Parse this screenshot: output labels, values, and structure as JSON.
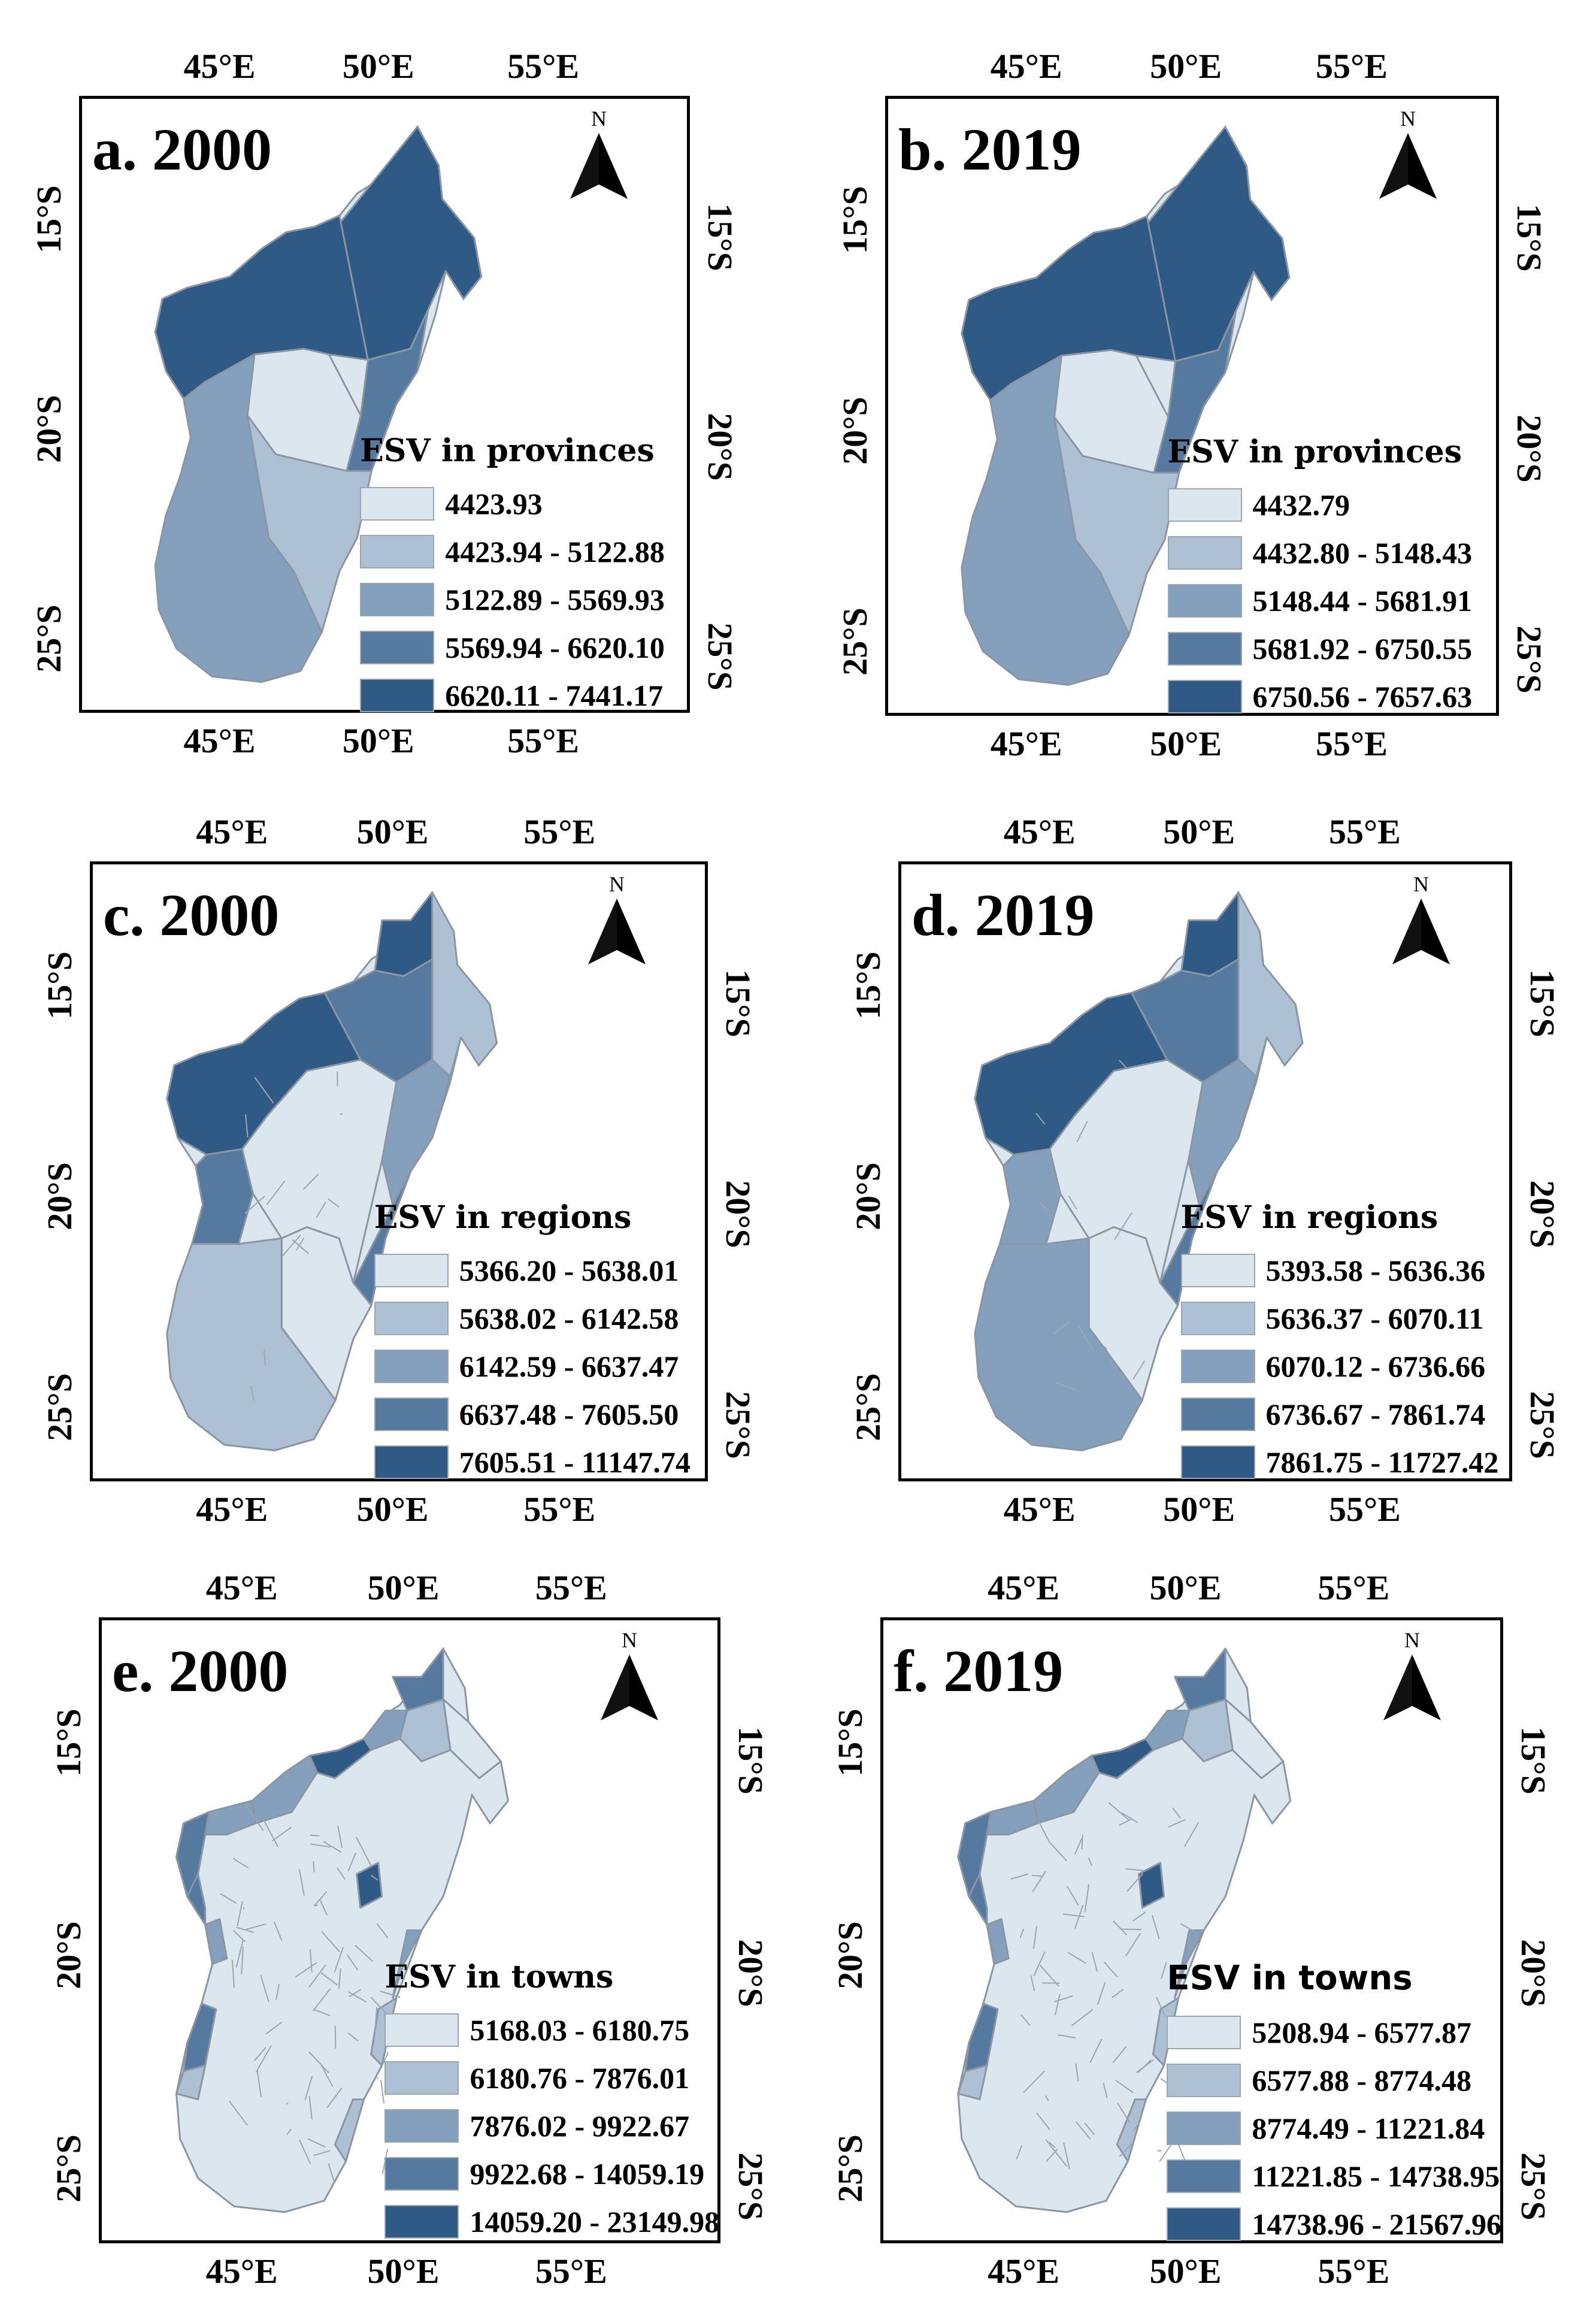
{
  "colors": [
    "#dce6ee",
    "#aec1d4",
    "#84a0bd",
    "#56799f",
    "#2e5a85"
  ],
  "axis_ticks": {
    "lon": [
      "45°E",
      "50°E",
      "55°E"
    ],
    "lat": [
      "15°S",
      "20°S",
      "25°S"
    ]
  },
  "panels": [
    {
      "title": "a. 2000",
      "north_label": "N",
      "legend_title": "ESV in provinces",
      "classes": [
        "4423.93",
        "4423.94 - 5122.88",
        "5122.89 - 5569.93",
        "5569.94 - 6620.10",
        "6620.11 - 7441.17"
      ]
    },
    {
      "title": "b. 2019",
      "north_label": "N",
      "legend_title": "ESV in provinces",
      "classes": [
        "4432.79",
        "4432.80 - 5148.43",
        "5148.44 - 5681.91",
        "5681.92 - 6750.55",
        "6750.56 - 7657.63"
      ]
    },
    {
      "title": "c. 2000",
      "north_label": "N",
      "legend_title": "ESV in regions",
      "classes": [
        "5366.20 - 5638.01",
        "5638.02 - 6142.58",
        "6142.59 - 6637.47",
        "6637.48 - 7605.50",
        "7605.51 - 11147.74"
      ]
    },
    {
      "title": "d. 2019",
      "north_label": "N",
      "legend_title": "ESV in regions",
      "classes": [
        "5393.58 - 5636.36",
        "5636.37 - 6070.11",
        "6070.12 - 6736.66",
        "6736.67 - 7861.74",
        "7861.75 - 11727.42"
      ]
    },
    {
      "title": "e. 2000",
      "north_label": "N",
      "legend_title": "ESV in towns",
      "classes": [
        "5168.03 - 6180.75",
        "6180.76 - 7876.01",
        "7876.02 - 9922.67",
        "9922.68 - 14059.19",
        "14059.20 - 23149.98"
      ]
    },
    {
      "title": "f. 2019",
      "north_label": "N",
      "legend_title": "ESV in towns",
      "classes": [
        "5208.94 - 6577.87",
        "6577.88 - 8774.48",
        "8774.49 - 11221.84",
        "11221.85 - 14738.95",
        "14738.96 - 21567.96"
      ]
    }
  ]
}
